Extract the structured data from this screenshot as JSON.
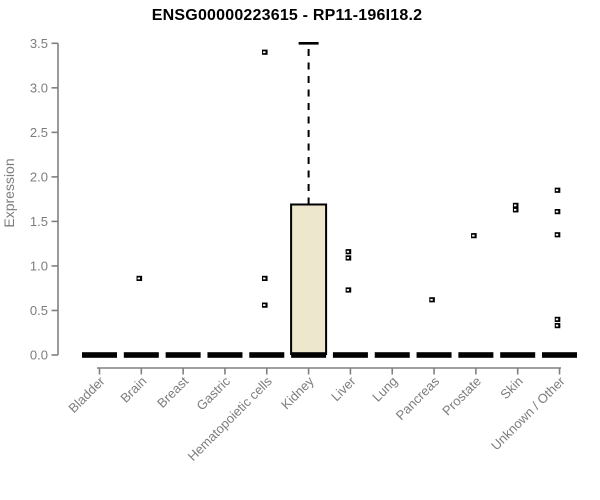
{
  "chart_data": {
    "type": "boxplot",
    "title": "ENSG00000223615 - RP11-196I18.2",
    "ylabel": "Expression",
    "xlabel": "",
    "ylim": [
      0,
      3.5
    ],
    "grid": false,
    "legend": null,
    "ytick_values": [
      0,
      0.5,
      1,
      1.5,
      2,
      2.5,
      3,
      3.5
    ],
    "ytick_labels": [
      "0.0",
      "0.5",
      "1.0",
      "1.5",
      "2.0",
      "2.5",
      "3.0",
      "3.5"
    ],
    "categories": [
      "Bladder",
      "Brain",
      "Breast",
      "Gastric",
      "Hematopoietic cells",
      "Kidney",
      "Liver",
      "Lung",
      "Pancreas",
      "Prostate",
      "Skin",
      "Unknown / Other"
    ],
    "series": [
      {
        "category": "Bladder",
        "q1": 0,
        "median": 0,
        "q3": 0,
        "whisker_low": 0,
        "whisker_high": 0,
        "outliers": []
      },
      {
        "category": "Brain",
        "q1": 0,
        "median": 0,
        "q3": 0,
        "whisker_low": 0,
        "whisker_high": 0,
        "outliers": [
          0.86
        ]
      },
      {
        "category": "Breast",
        "q1": 0,
        "median": 0,
        "q3": 0,
        "whisker_low": 0,
        "whisker_high": 0,
        "outliers": []
      },
      {
        "category": "Gastric",
        "q1": 0,
        "median": 0,
        "q3": 0,
        "whisker_low": 0,
        "whisker_high": 0,
        "outliers": []
      },
      {
        "category": "Hematopoietic cells",
        "q1": 0,
        "median": 0,
        "q3": 0,
        "whisker_low": 0,
        "whisker_high": 0,
        "outliers": [
          3.4,
          0.86,
          0.56
        ]
      },
      {
        "category": "Kidney",
        "q1": 0,
        "median": 0,
        "q3": 1.69,
        "whisker_low": 0,
        "whisker_high": 3.5,
        "outliers": []
      },
      {
        "category": "Liver",
        "q1": 0,
        "median": 0,
        "q3": 0,
        "whisker_low": 0,
        "whisker_high": 0,
        "outliers": [
          1.16,
          1.09,
          0.73
        ]
      },
      {
        "category": "Lung",
        "q1": 0,
        "median": 0,
        "q3": 0,
        "whisker_low": 0,
        "whisker_high": 0,
        "outliers": []
      },
      {
        "category": "Pancreas",
        "q1": 0,
        "median": 0,
        "q3": 0,
        "whisker_low": 0,
        "whisker_high": 0,
        "outliers": [
          0.62
        ]
      },
      {
        "category": "Prostate",
        "q1": 0,
        "median": 0,
        "q3": 0,
        "whisker_low": 0,
        "whisker_high": 0,
        "outliers": [
          1.34
        ]
      },
      {
        "category": "Skin",
        "q1": 0,
        "median": 0,
        "q3": 0,
        "whisker_low": 0,
        "whisker_high": 0,
        "outliers": [
          1.68,
          1.63
        ]
      },
      {
        "category": "Unknown / Other",
        "q1": 0,
        "median": 0,
        "q3": 0,
        "whisker_low": 0,
        "whisker_high": 0,
        "outliers": [
          1.85,
          1.61,
          1.35,
          0.4,
          0.33
        ]
      }
    ]
  },
  "style": {
    "box_fill": "#ece7cd",
    "box_stroke": "#000000",
    "data_color": "#000000",
    "axis_color": "#808080",
    "label_color": "#7d7d7d",
    "title_color": "#000000",
    "background": "#ffffff"
  }
}
